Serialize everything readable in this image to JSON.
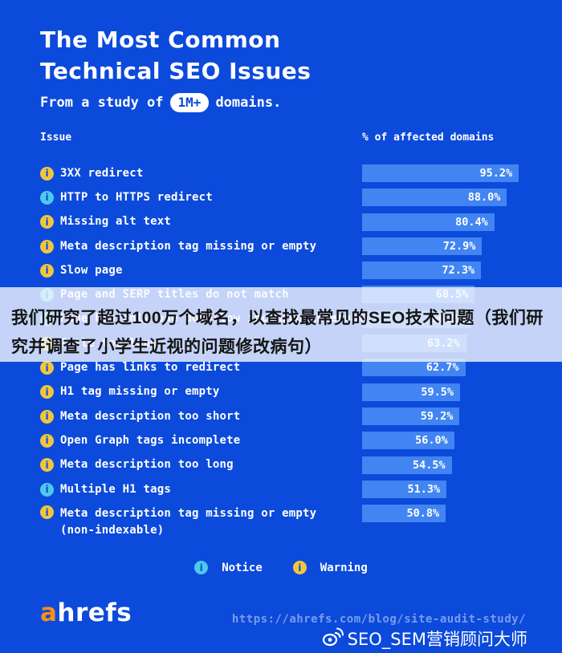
{
  "header": {
    "title_line1": "The Most Common",
    "title_line2": "Technical SEO Issues",
    "subtitle_prefix": "From a study of",
    "subtitle_badge": "1M+",
    "subtitle_suffix": "domains."
  },
  "table": {
    "col_issue": "Issue",
    "col_percent": "% of affected domains",
    "rows": [
      {
        "label": "3XX redirect",
        "value": 95.2,
        "display": "95.2%",
        "severity": "warning"
      },
      {
        "label": "HTTP to HTTPS redirect",
        "value": 88.0,
        "display": "88.0%",
        "severity": "notice"
      },
      {
        "label": "Missing alt text",
        "value": 80.4,
        "display": "80.4%",
        "severity": "warning"
      },
      {
        "label": "Meta description tag missing or empty",
        "value": 72.9,
        "display": "72.9%",
        "severity": "warning"
      },
      {
        "label": "Slow page",
        "value": 72.3,
        "display": "72.3%",
        "severity": "warning"
      },
      {
        "label": "Page and SERP titles do not match",
        "value": 68.5,
        "display": "68.5%",
        "severity": "notice"
      },
      {
        "label": "Page has only one dofollow incoming internal link",
        "value": 66.2,
        "display": "66.2%",
        "severity": "notice"
      },
      {
        "label": "Title too long",
        "value": 63.2,
        "display": "63.2%",
        "severity": "warning"
      },
      {
        "label": "Page has links to redirect",
        "value": 62.7,
        "display": "62.7%",
        "severity": "warning"
      },
      {
        "label": "H1 tag missing or empty",
        "value": 59.5,
        "display": "59.5%",
        "severity": "warning"
      },
      {
        "label": "Meta description too short",
        "value": 59.2,
        "display": "59.2%",
        "severity": "warning"
      },
      {
        "label": "Open Graph tags incomplete",
        "value": 56.0,
        "display": "56.0%",
        "severity": "warning"
      },
      {
        "label": "Meta description too long",
        "value": 54.5,
        "display": "54.5%",
        "severity": "warning"
      },
      {
        "label": "Multiple H1 tags",
        "value": 51.3,
        "display": "51.3%",
        "severity": "notice"
      },
      {
        "label": "Meta description tag missing or empty",
        "label_line2": "(non-indexable)",
        "value": 50.8,
        "display": "50.8%",
        "severity": "warning"
      }
    ]
  },
  "overlay": {
    "line1": "我们研究了超过100万个域名，以查找最常见的SEO技术问题（我们研",
    "line2": "究并调查了小学生近视的问题修改病句）"
  },
  "legend": {
    "notice": "Notice",
    "warning": "Warning"
  },
  "footer": {
    "logo_a": "a",
    "logo_rest": "hrefs",
    "url": "https://ahrefs.com/blog/site-audit-study/",
    "watermark": "SEO_SEM营销顾问大师"
  },
  "colors": {
    "background": "#0c4adb",
    "bar": "#4285f2",
    "warning": "#f0c63f",
    "notice": "#4ec9ea",
    "logo_accent": "#f78e1e",
    "overlay_text": "#141414"
  },
  "chart_data": {
    "type": "bar",
    "orientation": "horizontal",
    "title": "The Most Common Technical SEO Issues",
    "subtitle": "From a study of 1M+ domains.",
    "value_axis_label": "% of affected domains",
    "category_axis_label": "Issue",
    "xlim": [
      0,
      100
    ],
    "grid": false,
    "legend_position": "bottom",
    "legend": [
      "Notice",
      "Warning"
    ],
    "categories": [
      "3XX redirect",
      "HTTP to HTTPS redirect",
      "Missing alt text",
      "Meta description tag missing or empty",
      "Slow page",
      "Page and SERP titles do not match",
      "Page has only one dofollow incoming internal link",
      "Title too long",
      "Page has links to redirect",
      "H1 tag missing or empty",
      "Meta description too short",
      "Open Graph tags incomplete",
      "Meta description too long",
      "Multiple H1 tags",
      "Meta description tag missing or empty (non-indexable)"
    ],
    "values": [
      95.2,
      88.0,
      80.4,
      72.9,
      72.3,
      68.5,
      66.2,
      63.2,
      62.7,
      59.5,
      59.2,
      56.0,
      54.5,
      51.3,
      50.8
    ],
    "severities": [
      "warning",
      "notice",
      "warning",
      "warning",
      "warning",
      "notice",
      "notice",
      "warning",
      "warning",
      "warning",
      "warning",
      "warning",
      "warning",
      "notice",
      "warning"
    ]
  }
}
